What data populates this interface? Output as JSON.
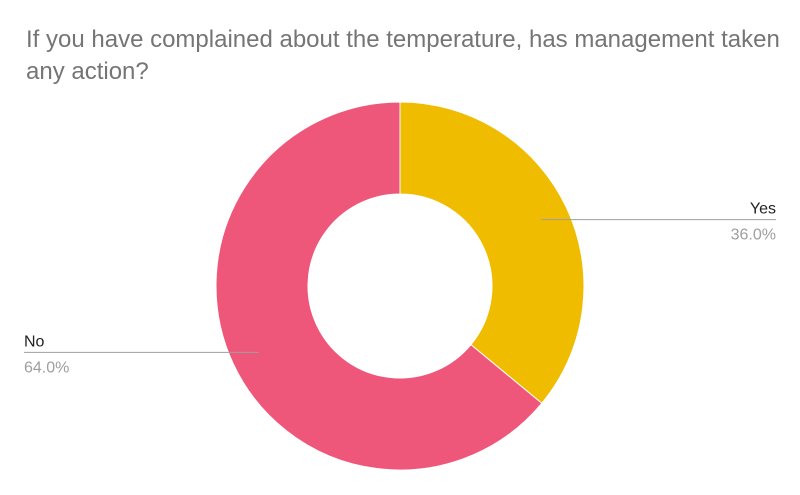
{
  "chart_data": {
    "type": "pie",
    "title": "If you have complained about the temperature, has management taken any action?",
    "donut": true,
    "categories": [
      "Yes",
      "No"
    ],
    "values": [
      36.0,
      64.0
    ],
    "value_labels": [
      "36.0%",
      "64.0%"
    ],
    "colors": [
      "#F0BC00",
      "#EE5779"
    ],
    "start_angle_deg": 0,
    "direction": "clockwise",
    "legend": "labels-outside"
  }
}
